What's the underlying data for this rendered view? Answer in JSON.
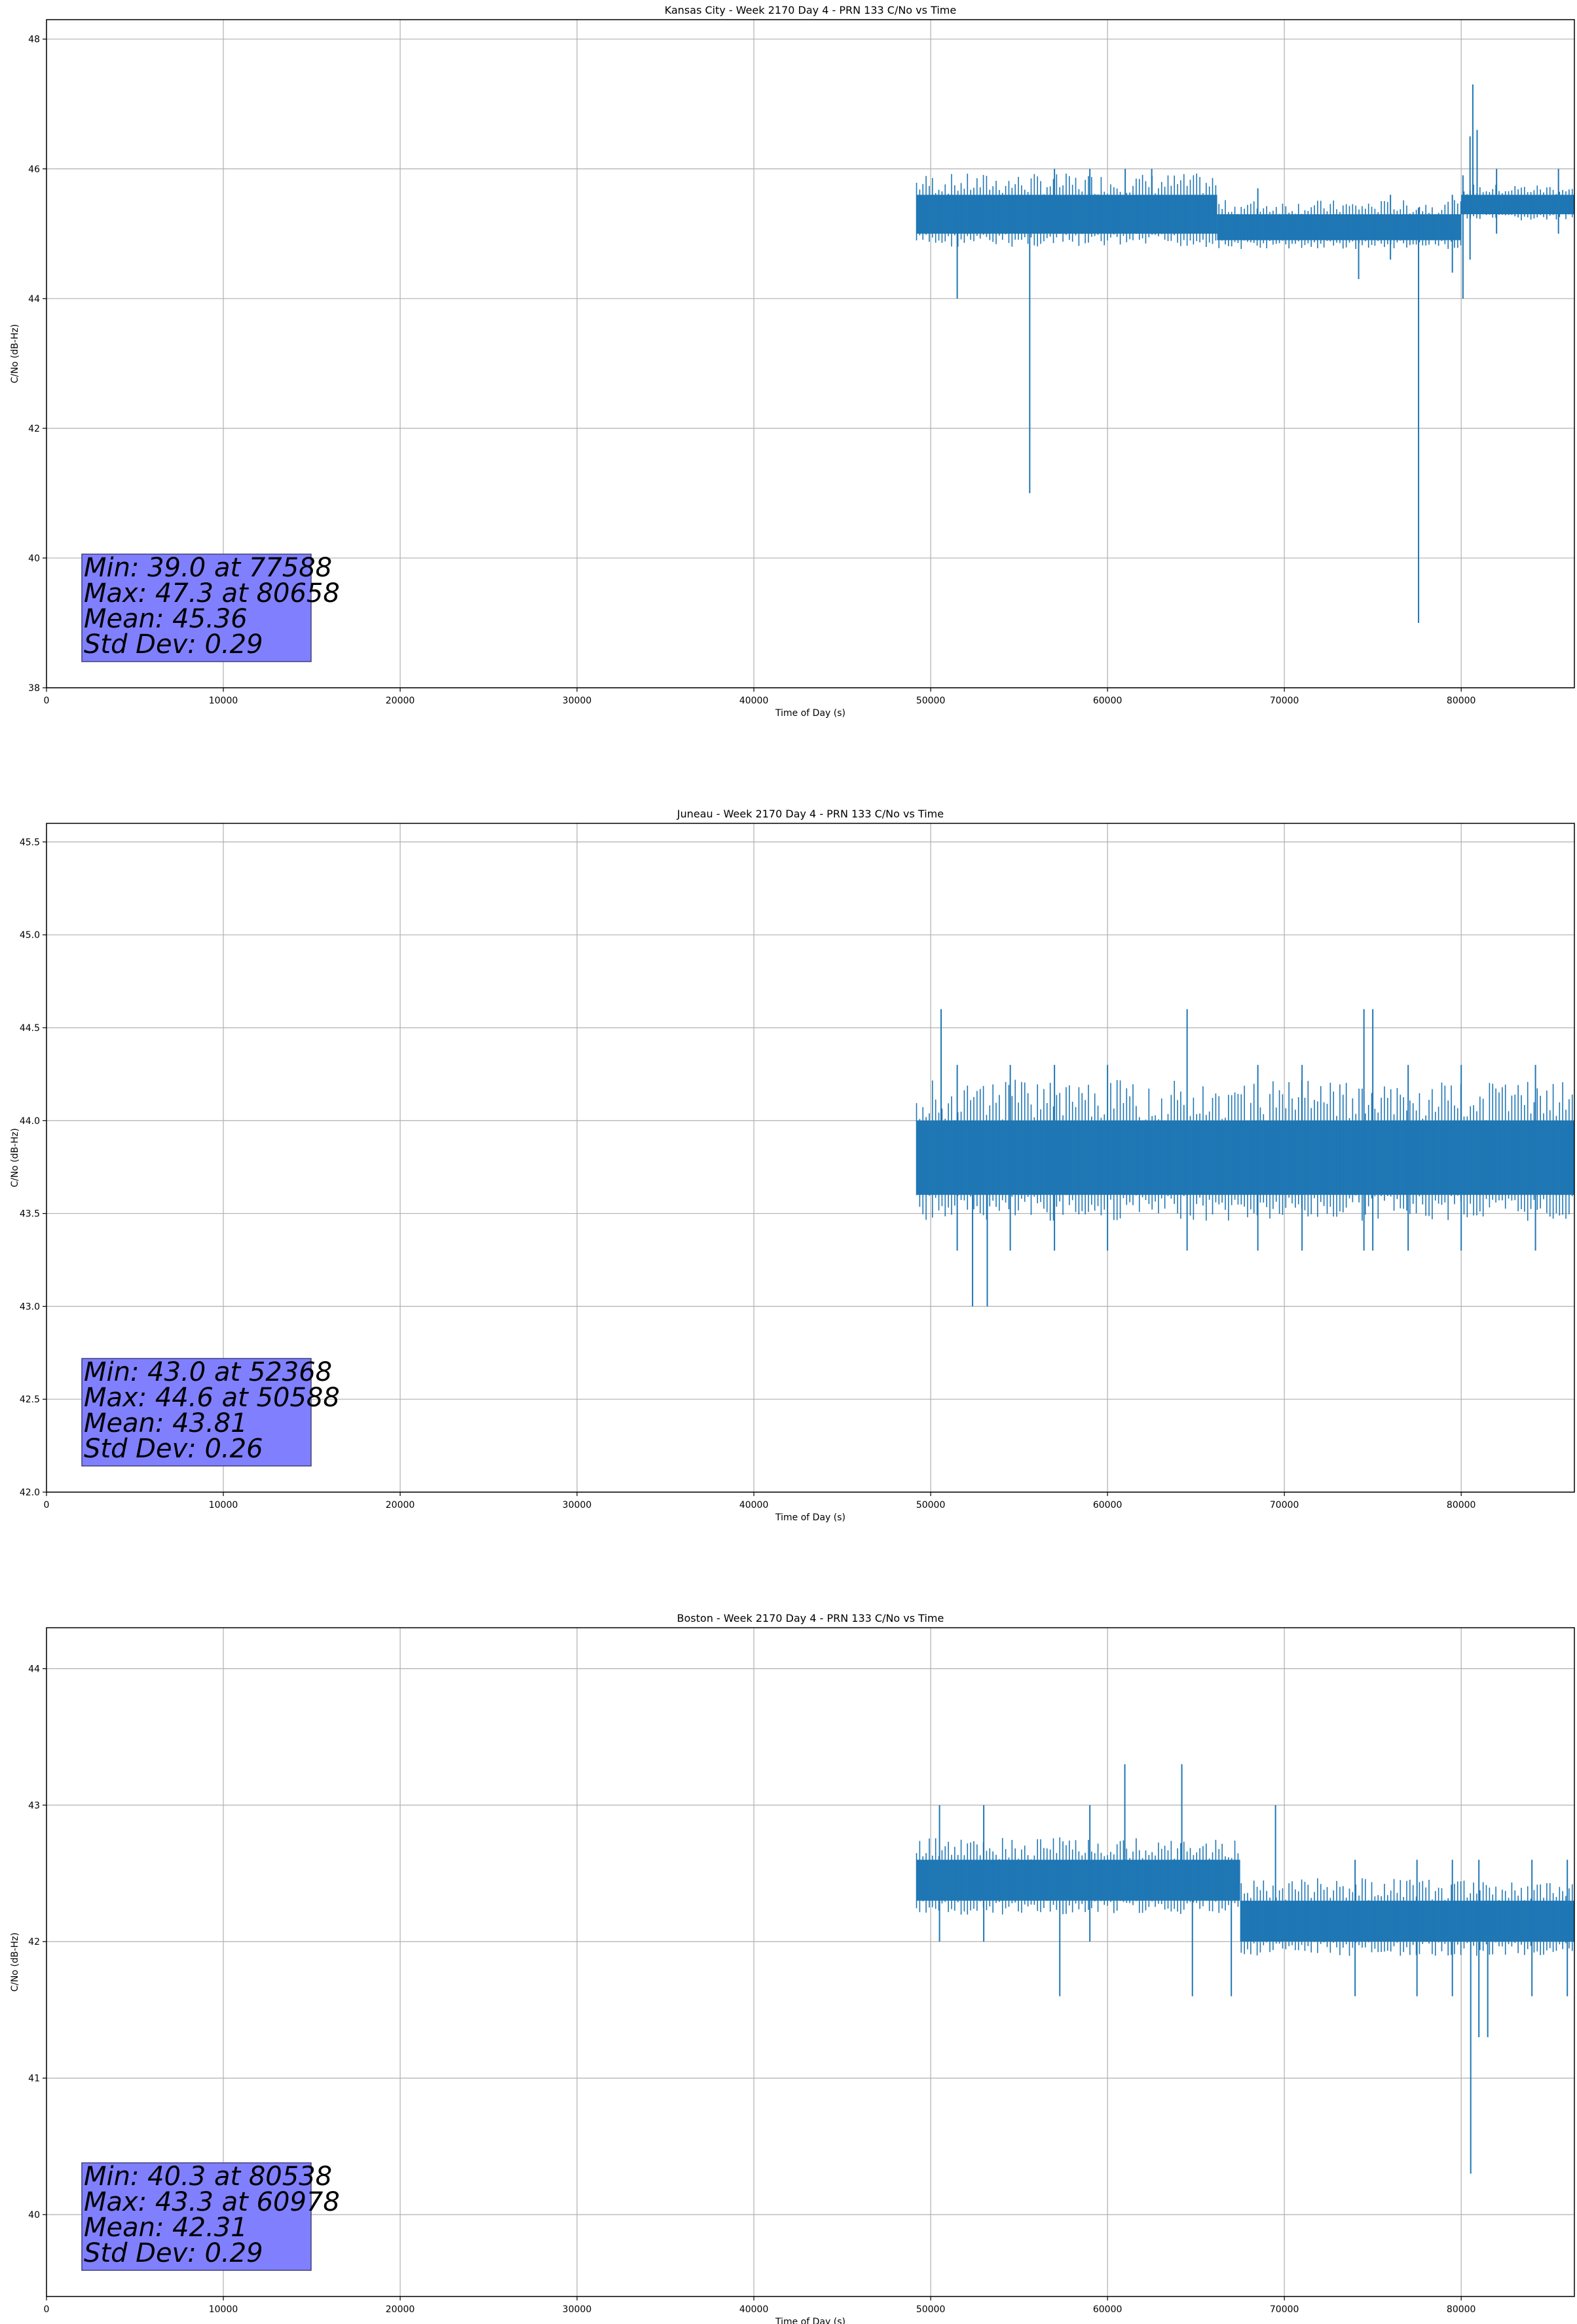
{
  "colors": {
    "series": "#1f77b4",
    "grid": "#b0b0b0",
    "axis": "#000000",
    "stats_box_fill": "#8080ff",
    "stats_box_border": "#3f3f7f"
  },
  "chart_data": [
    {
      "type": "line",
      "title": "Kansas City - Week 2170 Day 4 - PRN 133 C/No vs Time",
      "xlabel": "Time of Day (s)",
      "ylabel": "C/No (dB-Hz)",
      "xlim": [
        0,
        86400
      ],
      "ylim": [
        38,
        48.3
      ],
      "xticks": [
        0,
        10000,
        20000,
        30000,
        40000,
        50000,
        60000,
        70000,
        80000
      ],
      "xtick_labels": [
        "0",
        "10000",
        "20000",
        "30000",
        "40000",
        "50000",
        "60000",
        "70000",
        "80000"
      ],
      "yticks": [
        38,
        40,
        42,
        44,
        46,
        48
      ],
      "ytick_labels": [
        "38",
        "40",
        "42",
        "44",
        "46",
        "48"
      ],
      "grid": true,
      "series": [
        {
          "name": "C/No",
          "data_start": 49200,
          "data_end": 86400,
          "bands": [
            {
              "x": [
                49200,
                66200
              ],
              "y": [
                45.0,
                45.6
              ]
            },
            {
              "x": [
                66200,
                80000
              ],
              "y": [
                44.9,
                45.3
              ]
            },
            {
              "x": [
                80000,
                86400
              ],
              "y": [
                45.3,
                45.6
              ]
            }
          ],
          "spikes": [
            {
              "x": 51500,
              "low": 44.0,
              "high": 45.3
            },
            {
              "x": 55600,
              "low": 41.0,
              "high": 45.6
            },
            {
              "x": 57000,
              "low": 45.0,
              "high": 46.0
            },
            {
              "x": 59000,
              "low": 45.0,
              "high": 46.0
            },
            {
              "x": 61000,
              "low": 45.0,
              "high": 46.0
            },
            {
              "x": 62500,
              "low": 45.0,
              "high": 46.0
            },
            {
              "x": 68500,
              "low": 44.9,
              "high": 45.7
            },
            {
              "x": 74200,
              "low": 44.3,
              "high": 45.2
            },
            {
              "x": 76000,
              "low": 44.6,
              "high": 45.6
            },
            {
              "x": 77588,
              "low": 39.0,
              "high": 45.4
            },
            {
              "x": 79500,
              "low": 44.4,
              "high": 45.6
            },
            {
              "x": 80100,
              "low": 44.0,
              "high": 45.9
            },
            {
              "x": 80500,
              "low": 44.6,
              "high": 46.5
            },
            {
              "x": 80658,
              "low": 45.3,
              "high": 47.3
            },
            {
              "x": 80900,
              "low": 45.3,
              "high": 46.6
            },
            {
              "x": 82000,
              "low": 45.0,
              "high": 46.0
            },
            {
              "x": 85500,
              "low": 45.0,
              "high": 46.0
            }
          ]
        }
      ],
      "stats": {
        "min": "Min: 39.0 at 77588",
        "max": "Max: 47.3 at 80658",
        "mean": "Mean: 45.36",
        "std": "Std Dev: 0.29"
      },
      "stats_placement": "bottom-left"
    },
    {
      "type": "line",
      "title": "Juneau - Week 2170 Day 4 - PRN 133 C/No vs Time",
      "xlabel": "Time of Day (s)",
      "ylabel": "C/No (dB-Hz)",
      "xlim": [
        0,
        86400
      ],
      "ylim": [
        42.0,
        45.6
      ],
      "xticks": [
        0,
        10000,
        20000,
        30000,
        40000,
        50000,
        60000,
        70000,
        80000
      ],
      "xtick_labels": [
        "0",
        "10000",
        "20000",
        "30000",
        "40000",
        "50000",
        "60000",
        "70000",
        "80000"
      ],
      "yticks": [
        42.0,
        42.5,
        43.0,
        43.5,
        44.0,
        44.5,
        45.0,
        45.5
      ],
      "ytick_labels": [
        "42.0",
        "42.5",
        "43.0",
        "43.5",
        "44.0",
        "44.5",
        "45.0",
        "45.5"
      ],
      "grid": true,
      "series": [
        {
          "name": "C/No",
          "data_start": 49200,
          "data_end": 86400,
          "bands": [
            {
              "x": [
                49200,
                86400
              ],
              "y": [
                43.6,
                44.0
              ]
            }
          ],
          "spikes": [
            {
              "x": 50588,
              "low": 43.6,
              "high": 44.6
            },
            {
              "x": 51500,
              "low": 43.3,
              "high": 44.3
            },
            {
              "x": 52368,
              "low": 43.0,
              "high": 44.0
            },
            {
              "x": 53200,
              "low": 43.0,
              "high": 44.0
            },
            {
              "x": 54500,
              "low": 43.3,
              "high": 44.3
            },
            {
              "x": 57000,
              "low": 43.3,
              "high": 44.3
            },
            {
              "x": 60000,
              "low": 43.3,
              "high": 44.3
            },
            {
              "x": 64500,
              "low": 43.3,
              "high": 44.6
            },
            {
              "x": 68500,
              "low": 43.3,
              "high": 44.3
            },
            {
              "x": 71000,
              "low": 43.3,
              "high": 44.3
            },
            {
              "x": 74500,
              "low": 43.3,
              "high": 44.6
            },
            {
              "x": 75000,
              "low": 43.3,
              "high": 44.6
            },
            {
              "x": 77000,
              "low": 43.3,
              "high": 44.3
            },
            {
              "x": 80000,
              "low": 43.3,
              "high": 44.3
            },
            {
              "x": 84200,
              "low": 43.3,
              "high": 44.3
            }
          ]
        }
      ],
      "stats": {
        "min": "Min: 43.0 at 52368",
        "max": "Max: 44.6 at 50588",
        "mean": "Mean: 43.81",
        "std": "Std Dev: 0.26"
      },
      "stats_placement": "bottom-left"
    },
    {
      "type": "line",
      "title": "Boston - Week 2170 Day 4 - PRN 133 C/No vs Time",
      "xlabel": "Time of Day (s)",
      "ylabel": "C/No (dB-Hz)",
      "xlim": [
        0,
        86400
      ],
      "ylim": [
        39.4,
        44.3
      ],
      "xticks": [
        0,
        10000,
        20000,
        30000,
        40000,
        50000,
        60000,
        70000,
        80000
      ],
      "xtick_labels": [
        "0",
        "10000",
        "20000",
        "30000",
        "40000",
        "50000",
        "60000",
        "70000",
        "80000"
      ],
      "yticks": [
        40,
        41,
        42,
        43,
        44
      ],
      "ytick_labels": [
        "40",
        "41",
        "42",
        "43",
        "44"
      ],
      "grid": true,
      "series": [
        {
          "name": "C/No",
          "data_start": 49200,
          "data_end": 86400,
          "bands": [
            {
              "x": [
                49200,
                67500
              ],
              "y": [
                42.3,
                42.6
              ]
            },
            {
              "x": [
                67500,
                86400
              ],
              "y": [
                42.0,
                42.3
              ]
            }
          ],
          "spikes": [
            {
              "x": 50500,
              "low": 42.0,
              "high": 43.0
            },
            {
              "x": 53000,
              "low": 42.0,
              "high": 43.0
            },
            {
              "x": 57300,
              "low": 41.6,
              "high": 42.6
            },
            {
              "x": 59000,
              "low": 42.0,
              "high": 43.0
            },
            {
              "x": 60978,
              "low": 42.3,
              "high": 43.3
            },
            {
              "x": 64200,
              "low": 42.3,
              "high": 43.3
            },
            {
              "x": 64800,
              "low": 41.6,
              "high": 42.6
            },
            {
              "x": 67000,
              "low": 41.6,
              "high": 42.6
            },
            {
              "x": 69500,
              "low": 42.0,
              "high": 43.0
            },
            {
              "x": 74000,
              "low": 41.6,
              "high": 42.6
            },
            {
              "x": 77500,
              "low": 41.6,
              "high": 42.6
            },
            {
              "x": 79500,
              "low": 41.6,
              "high": 42.6
            },
            {
              "x": 80538,
              "low": 40.3,
              "high": 42.3
            },
            {
              "x": 81000,
              "low": 41.3,
              "high": 42.6
            },
            {
              "x": 81500,
              "low": 41.3,
              "high": 42.3
            },
            {
              "x": 84000,
              "low": 41.6,
              "high": 42.6
            },
            {
              "x": 86000,
              "low": 41.6,
              "high": 42.6
            }
          ]
        }
      ],
      "stats": {
        "min": "Min: 40.3 at 80538",
        "max": "Max: 43.3 at 60978",
        "mean": "Mean: 42.31",
        "std": "Std Dev: 0.29"
      },
      "stats_placement": "bottom-left"
    }
  ]
}
